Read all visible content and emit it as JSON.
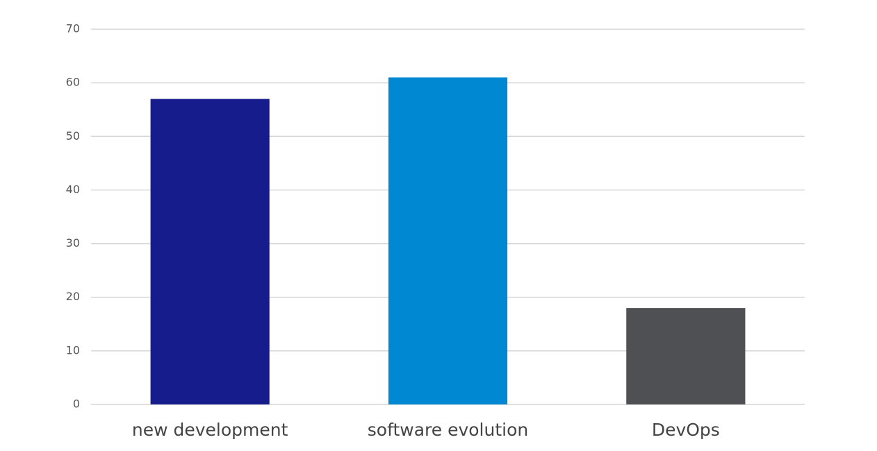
{
  "chart_data": {
    "type": "bar",
    "categories": [
      "new development",
      "software evolution",
      "DevOps"
    ],
    "values": [
      57,
      61,
      18
    ],
    "colors": [
      "#161c8c",
      "#0089d2",
      "#4f5054"
    ],
    "ylim": [
      0,
      70
    ],
    "yticks": [
      0,
      10,
      20,
      30,
      40,
      50,
      60,
      70
    ],
    "grid": true
  }
}
